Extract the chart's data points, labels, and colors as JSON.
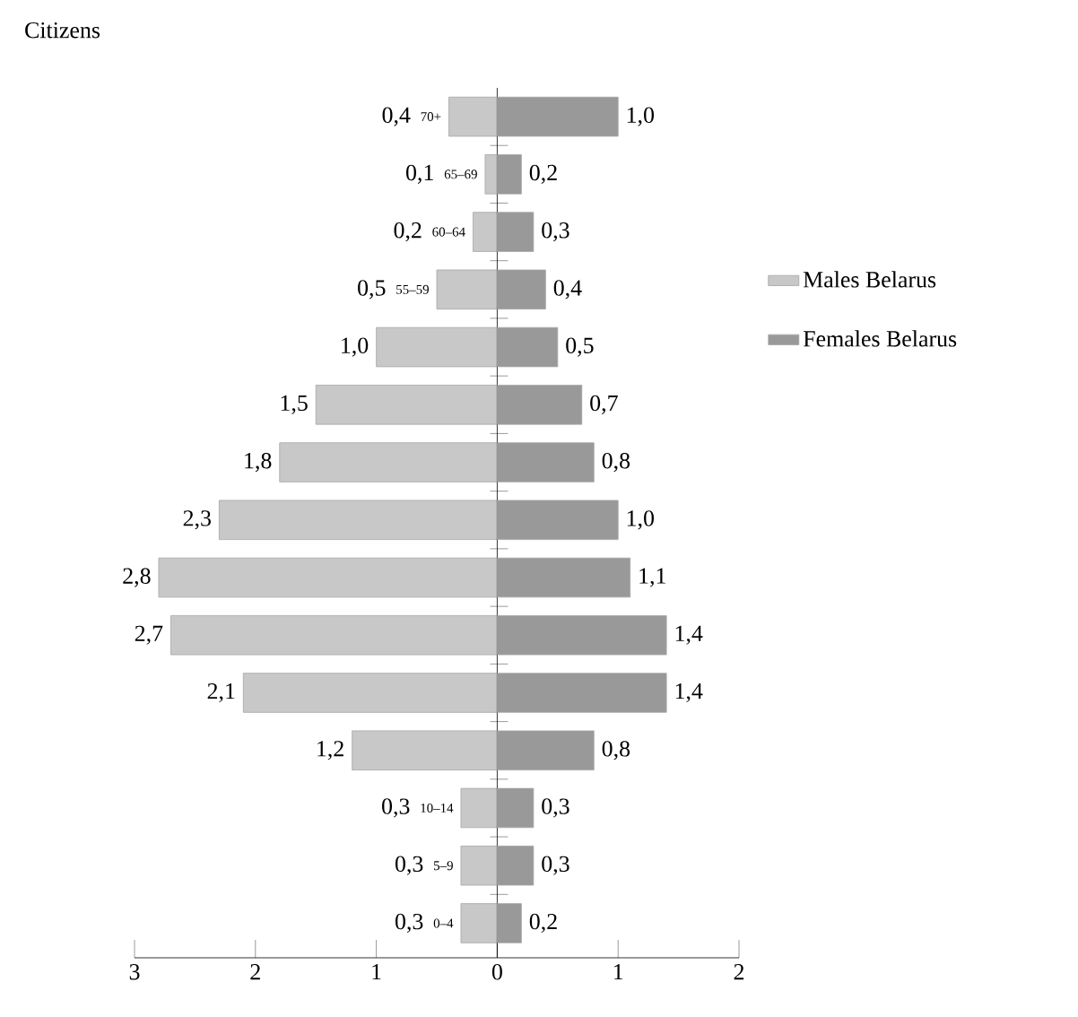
{
  "chart_data": [
    {
      "type": "bar",
      "orientation": "horizontal",
      "title": "Citizens",
      "categories": [
        "70+",
        "65–69",
        "60–64",
        "55–59",
        null,
        null,
        null,
        null,
        null,
        null,
        null,
        null,
        "10–14",
        "5–9",
        "0–4"
      ],
      "series": [
        {
          "name": "Males Belarus",
          "color": "#c8c8c8",
          "values": [
            0.4,
            0.1,
            0.2,
            0.5,
            1.0,
            1.5,
            1.8,
            2.3,
            2.8,
            2.7,
            2.1,
            1.2,
            0.3,
            0.3,
            0.3
          ],
          "value_labels": [
            "0,4",
            "0,1",
            "0,2",
            "0,5",
            "1,0",
            "1,5",
            "1,8",
            "2,3",
            "2,8",
            "2,7",
            "2,1",
            "1,2",
            "0,3",
            "0,3",
            "0,3"
          ]
        }
      ],
      "xlim": [
        3,
        0
      ],
      "xticks": [
        3,
        2,
        1,
        0
      ],
      "tick_labels": "x",
      "legend": "right"
    },
    {
      "type": "bar",
      "orientation": "horizontal",
      "categories": [
        null,
        null,
        null,
        null,
        null,
        null,
        null,
        null,
        null,
        null,
        null,
        null,
        null,
        null,
        null
      ],
      "series": [
        {
          "name": "Females Belarus",
          "color": "#999999",
          "values": [
            1.0,
            0.2,
            0.3,
            0.4,
            0.5,
            0.7,
            0.8,
            1.0,
            1.1,
            1.4,
            1.4,
            0.8,
            0.3,
            0.3,
            0.2
          ],
          "value_labels": [
            "1,0",
            "0,2",
            "0,3",
            "0,4",
            "0,5",
            "0,7",
            "0,8",
            "1,0",
            "1,1",
            "1,4",
            "1,4",
            "0,8",
            "0,3",
            "0,3",
            "0,2"
          ]
        }
      ],
      "xlim": [
        0,
        2
      ],
      "xticks": [
        {
          "value": 0,
          "label": null
        },
        1,
        2
      ],
      "tick_labels": "x",
      "legend": "right"
    }
  ]
}
